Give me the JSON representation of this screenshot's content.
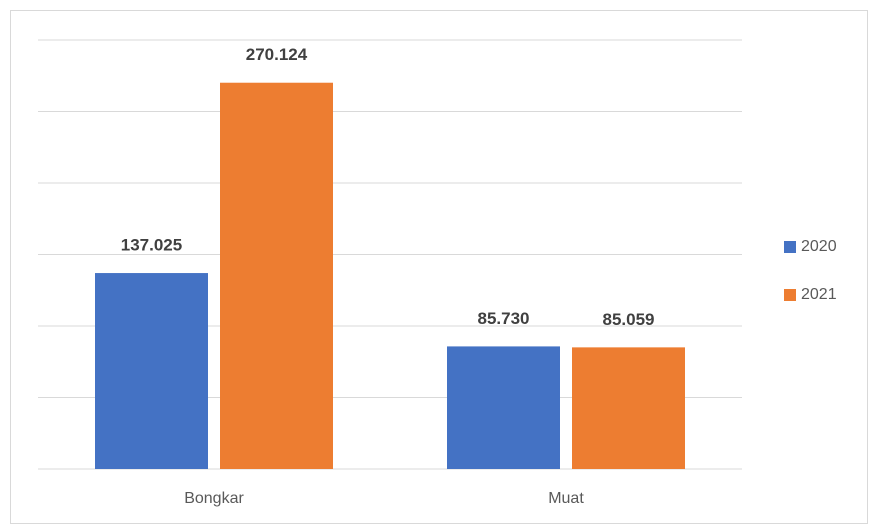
{
  "chart_data": {
    "type": "bar",
    "categories": [
      "Bongkar",
      "Muat"
    ],
    "series": [
      {
        "name": "2020",
        "color": "#4472c4",
        "values": [
          137025,
          85730
        ],
        "value_labels": [
          "137.025",
          "85.730"
        ]
      },
      {
        "name": "2021",
        "color": "#ed7d31",
        "values": [
          270124,
          85059
        ],
        "value_labels": [
          "270.124",
          "85.059"
        ]
      }
    ],
    "ylim": [
      0,
      300000
    ],
    "yticks": [
      0,
      50000,
      100000,
      150000,
      200000,
      250000,
      300000
    ],
    "grid": true,
    "legend": "right"
  }
}
